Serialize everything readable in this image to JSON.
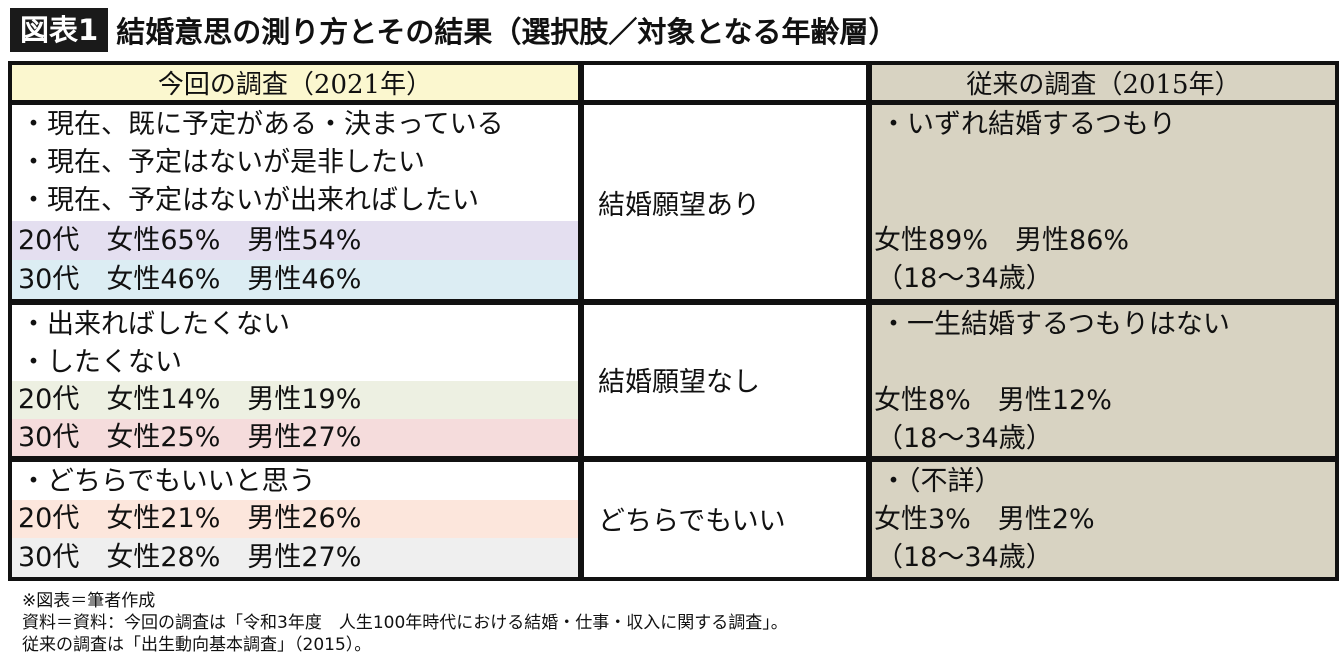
{
  "title": {
    "badge": "図表1",
    "text": "結婚意思の測り方とその結果（選択肢／対象となる年齢層）"
  },
  "table": {
    "header_left": "今回の調査（2021年）",
    "header_middle": "",
    "header_right": "従来の調査（2015年）",
    "groups": [
      {
        "options": [
          "・現在、既に予定がある・決まっている",
          "・現在、予定はないが是非したい",
          "・現在、予定はないが出来ればしたい"
        ],
        "stats": [
          "20代　女性65%　男性54%",
          "30代　女性46%　男性46%"
        ],
        "middle": "結婚願望あり",
        "right_option": "・いずれ結婚するつもり",
        "right_stat": "女性89%　男性86%",
        "right_age": "（18～34歳）"
      },
      {
        "options": [
          "・出来ればしたくない",
          "・したくない"
        ],
        "stats": [
          "20代　女性14%　男性19%",
          "30代　女性25%　男性27%"
        ],
        "middle": "結婚願望なし",
        "right_option": "・一生結婚するつもりはない",
        "right_stat": "女性8%　男性12%",
        "right_age": "（18～34歳）"
      },
      {
        "options": [
          "・どちらでもいいと思う"
        ],
        "stats": [
          "20代　女性21%　男性26%",
          "30代　女性28%　男性27%"
        ],
        "middle": "どちらでもいい",
        "right_option": "・（不詳）",
        "right_stat": "女性3%　男性2%",
        "right_age": "（18～34歳）"
      }
    ]
  },
  "colors": {
    "header_left_bg": "#fbf7cf",
    "right_column_bg": "#d8d3c2",
    "row_lavender": "#e4dff0",
    "row_skyblue": "#dcedf3",
    "row_sage": "#edf0e2",
    "row_pink": "#f5dcdc",
    "row_peach": "#fce6dc",
    "row_grey": "#efefef"
  },
  "footnotes": [
    "※図表＝筆者作成",
    "資料＝資料：今回の調査は「令和3年度　人生100年時代における結婚・仕事・収入に関する調査」。",
    "従来の調査は「出生動向基本調査」（2015）。"
  ]
}
